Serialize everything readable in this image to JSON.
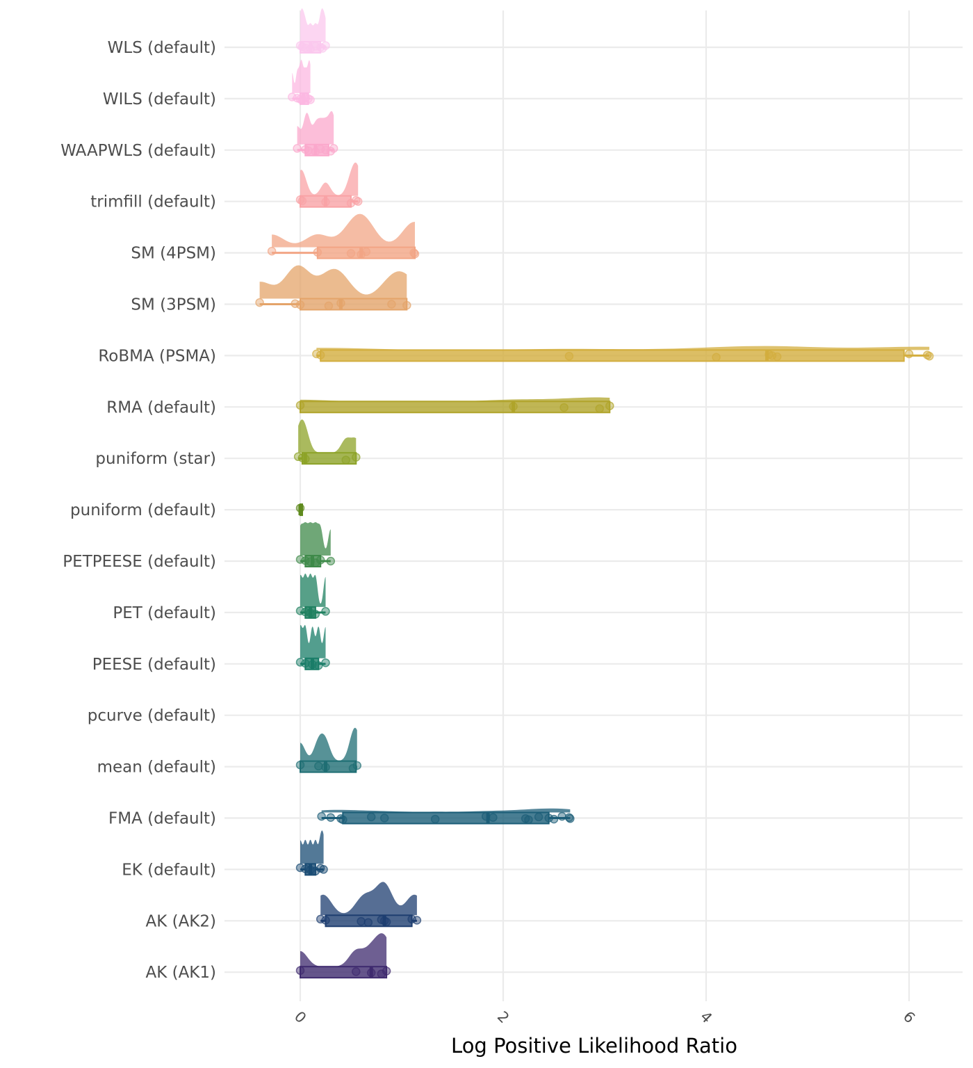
{
  "chart_data": {
    "type": "raincloud",
    "title": "",
    "xlabel": "Log Positive Likelihood Ratio",
    "ylabel": "",
    "xlim": [
      -0.75,
      6.5
    ],
    "xticks": [
      0,
      2,
      4,
      6
    ],
    "xtick_labels": [
      "0",
      "2",
      "4",
      "6"
    ],
    "grid": true,
    "legend": "none",
    "categories": [
      "WLS (default)",
      "WILS (default)",
      "WAAPWLS (default)",
      "trimfill (default)",
      "SM (4PSM)",
      "SM (3PSM)",
      "RoBMA (PSMA)",
      "RMA (default)",
      "puniform (star)",
      "puniform (default)",
      "PETPEESE (default)",
      "PET (default)",
      "PEESE (default)",
      "pcurve (default)",
      "mean (default)",
      "FMA (default)",
      "EK (default)",
      "AK (AK2)",
      "AK (AK1)"
    ],
    "series": [
      {
        "name": "WLS (default)",
        "color": "#FBC8EE",
        "min": 0.0,
        "q1": 0.0,
        "median": 0.1,
        "q3": 0.2,
        "max": 0.25,
        "points": [
          0.0,
          0.02,
          0.05,
          0.1,
          0.15,
          0.2,
          0.22,
          0.25
        ]
      },
      {
        "name": "WILS (default)",
        "color": "#FCB8E2",
        "min": -0.08,
        "q1": 0.0,
        "median": 0.03,
        "q3": 0.08,
        "max": 0.1,
        "points": [
          -0.08,
          -0.03,
          0.0,
          0.02,
          0.05,
          0.08,
          0.1
        ]
      },
      {
        "name": "WAAPWLS (default)",
        "color": "#FBA8CC",
        "min": -0.03,
        "q1": 0.05,
        "median": 0.15,
        "q3": 0.28,
        "max": 0.33,
        "points": [
          -0.03,
          0.05,
          0.08,
          0.15,
          0.2,
          0.25,
          0.3,
          0.33
        ]
      },
      {
        "name": "trimfill (default)",
        "color": "#F9A3A6",
        "min": 0.0,
        "q1": 0.0,
        "median": 0.25,
        "q3": 0.5,
        "max": 0.57,
        "points": [
          0.0,
          0.02,
          0.25,
          0.5,
          0.55,
          0.57
        ]
      },
      {
        "name": "SM (4PSM)",
        "color": "#F2A585",
        "min": -0.28,
        "q1": 0.17,
        "median": 0.6,
        "q3": 1.13,
        "max": 1.13,
        "points": [
          -0.28,
          0.17,
          0.5,
          0.6,
          0.65,
          1.12,
          1.13
        ]
      },
      {
        "name": "SM (3PSM)",
        "color": "#E4A46A",
        "min": -0.4,
        "q1": 0.0,
        "median": 0.4,
        "q3": 1.05,
        "max": 1.05,
        "points": [
          -0.4,
          -0.05,
          0.0,
          0.28,
          0.4,
          0.9,
          1.05
        ]
      },
      {
        "name": "RoBMA (PSMA)",
        "color": "#D3AE3E",
        "min": 0.16,
        "q1": 0.2,
        "median": 4.6,
        "q3": 5.95,
        "max": 6.2,
        "points": [
          0.16,
          0.2,
          2.65,
          4.1,
          4.62,
          4.65,
          4.7,
          6.0,
          6.18,
          6.2
        ]
      },
      {
        "name": "RMA (default)",
        "color": "#B0A42A",
        "min": 0.0,
        "q1": 0.0,
        "median": 2.1,
        "q3": 3.05,
        "max": 3.05,
        "points": [
          0.0,
          2.1,
          2.6,
          2.95,
          3.05
        ]
      },
      {
        "name": "puniform (star)",
        "color": "#8DA328",
        "min": -0.02,
        "q1": 0.02,
        "median": 0.05,
        "q3": 0.55,
        "max": 0.55,
        "points": [
          -0.02,
          0.02,
          0.05,
          0.45,
          0.55
        ]
      },
      {
        "name": "puniform (default)",
        "color": "#5F8A1E",
        "min": 0.0,
        "q1": 0.0,
        "median": 0.0,
        "q3": 0.0,
        "max": 0.0,
        "points": [
          0.0
        ]
      },
      {
        "name": "PETPEESE (default)",
        "color": "#3F8A4A",
        "min": 0.0,
        "q1": 0.05,
        "median": 0.12,
        "q3": 0.2,
        "max": 0.3,
        "points": [
          0.0,
          0.05,
          0.1,
          0.15,
          0.2,
          0.3
        ]
      },
      {
        "name": "PET (default)",
        "color": "#1F8060",
        "min": 0.0,
        "q1": 0.05,
        "median": 0.1,
        "q3": 0.15,
        "max": 0.25,
        "points": [
          0.0,
          0.05,
          0.1,
          0.15,
          0.25
        ]
      },
      {
        "name": "PEESE (default)",
        "color": "#1A7D68",
        "min": 0.0,
        "q1": 0.05,
        "median": 0.12,
        "q3": 0.18,
        "max": 0.25,
        "points": [
          0.0,
          0.05,
          0.12,
          0.18,
          0.25
        ]
      },
      {
        "name": "pcurve (default)",
        "color": "#1E7A70",
        "min": null,
        "q1": null,
        "median": null,
        "q3": null,
        "max": null,
        "points": []
      },
      {
        "name": "mean (default)",
        "color": "#1F6E74",
        "min": 0.0,
        "q1": 0.0,
        "median": 0.25,
        "q3": 0.55,
        "max": 0.56,
        "points": [
          0.0,
          0.18,
          0.25,
          0.52,
          0.56
        ]
      },
      {
        "name": "FMA (default)",
        "color": "#1C5E78",
        "min": 0.21,
        "q1": 0.42,
        "median": 1.85,
        "q3": 2.45,
        "max": 2.66,
        "points": [
          0.21,
          0.3,
          0.4,
          0.42,
          0.7,
          0.83,
          1.33,
          1.83,
          1.9,
          2.22,
          2.25,
          2.35,
          2.45,
          2.5,
          2.58,
          2.65,
          2.66
        ]
      },
      {
        "name": "EK (default)",
        "color": "#1A4C74",
        "min": 0.0,
        "q1": 0.05,
        "median": 0.1,
        "q3": 0.15,
        "max": 0.23,
        "points": [
          0.0,
          0.05,
          0.1,
          0.15,
          0.2,
          0.23
        ]
      },
      {
        "name": "AK (AK2)",
        "color": "#1E3E70",
        "min": 0.2,
        "q1": 0.25,
        "median": 0.83,
        "q3": 1.1,
        "max": 1.15,
        "points": [
          0.2,
          0.25,
          0.6,
          0.67,
          0.8,
          0.83,
          0.85,
          1.1,
          1.15
        ]
      },
      {
        "name": "AK (AK1)",
        "color": "#3E2A6E",
        "min": 0.0,
        "q1": 0.0,
        "median": 0.7,
        "q3": 0.85,
        "max": 0.85,
        "points": [
          0.0,
          0.55,
          0.7,
          0.8,
          0.85
        ]
      }
    ]
  }
}
